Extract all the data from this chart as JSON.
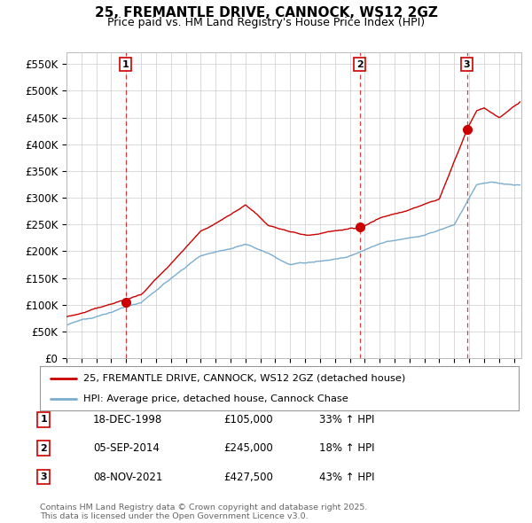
{
  "title": "25, FREMANTLE DRIVE, CANNOCK, WS12 2GZ",
  "subtitle": "Price paid vs. HM Land Registry's House Price Index (HPI)",
  "ylabel_ticks": [
    "£0",
    "£50K",
    "£100K",
    "£150K",
    "£200K",
    "£250K",
    "£300K",
    "£350K",
    "£400K",
    "£450K",
    "£500K",
    "£550K"
  ],
  "ytick_vals": [
    0,
    50000,
    100000,
    150000,
    200000,
    250000,
    300000,
    350000,
    400000,
    450000,
    500000,
    550000
  ],
  "ylim": [
    0,
    572000
  ],
  "xlim_start": 1995.0,
  "xlim_end": 2025.5,
  "sale_dates": [
    1998.96,
    2014.67,
    2021.85
  ],
  "sale_prices": [
    105000,
    245000,
    427500
  ],
  "sale_labels": [
    "1",
    "2",
    "3"
  ],
  "legend_line1": "25, FREMANTLE DRIVE, CANNOCK, WS12 2GZ (detached house)",
  "legend_line2": "HPI: Average price, detached house, Cannock Chase",
  "table_data": [
    [
      "1",
      "18-DEC-1998",
      "£105,000",
      "33% ↑ HPI"
    ],
    [
      "2",
      "05-SEP-2014",
      "£245,000",
      "18% ↑ HPI"
    ],
    [
      "3",
      "08-NOV-2021",
      "£427,500",
      "43% ↑ HPI"
    ]
  ],
  "footnote": "Contains HM Land Registry data © Crown copyright and database right 2025.\nThis data is licensed under the Open Government Licence v3.0.",
  "red_color": "#cc0000",
  "blue_color": "#7aadcf",
  "grid_color": "#cccccc",
  "bg_color": "#ffffff",
  "title_fontsize": 11,
  "subtitle_fontsize": 9
}
